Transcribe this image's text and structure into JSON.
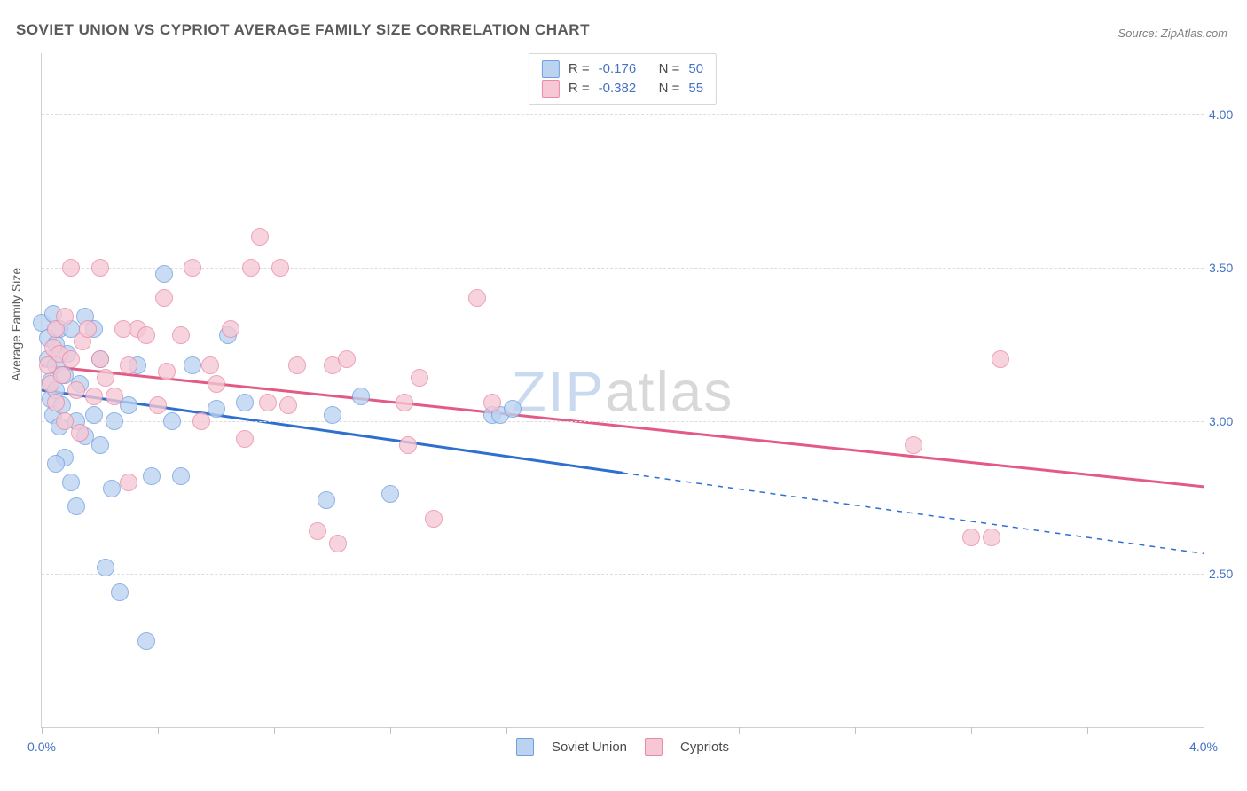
{
  "title": "SOVIET UNION VS CYPRIOT AVERAGE FAMILY SIZE CORRELATION CHART",
  "source": "Source: ZipAtlas.com",
  "ylabel": "Average Family Size",
  "watermark": {
    "zip": "ZIP",
    "rest": "atlas"
  },
  "chart": {
    "type": "scatter+regression",
    "xlim": [
      0.0,
      4.0
    ],
    "ylim": [
      2.0,
      4.2
    ],
    "xtick_positions": [
      0.0,
      0.4,
      0.8,
      1.2,
      1.6,
      2.0,
      2.4,
      2.8,
      3.2,
      3.6,
      4.0
    ],
    "xtick_labels": {
      "0.0": "0.0%",
      "4.0": "4.0%"
    },
    "ytick_positions": [
      2.5,
      3.0,
      3.5,
      4.0
    ],
    "ytick_labels": [
      "2.50",
      "3.00",
      "3.50",
      "4.00"
    ],
    "grid_color": "#dcdcdc",
    "background_color": "#ffffff",
    "axis_color": "#d0d0d0",
    "marker_radius": 9,
    "marker_stroke_width": 1.5,
    "label_fontsize": 14,
    "title_fontsize": 17
  },
  "series": [
    {
      "name": "Soviet Union",
      "fill": "#bcd3f0",
      "stroke": "#6f9fe0",
      "line_color": "#2f6fd0",
      "R": "-0.176",
      "N": "50",
      "regression": {
        "x1": 0.0,
        "y1": 3.1,
        "x2_solid": 2.0,
        "y2_solid": 2.83,
        "x2_dash": 4.05,
        "y2_dash": 2.56
      },
      "points": [
        [
          0.0,
          3.32
        ],
        [
          0.02,
          3.27
        ],
        [
          0.02,
          3.2
        ],
        [
          0.03,
          3.13
        ],
        [
          0.03,
          3.07
        ],
        [
          0.04,
          3.02
        ],
        [
          0.04,
          3.35
        ],
        [
          0.05,
          3.1
        ],
        [
          0.05,
          3.18
        ],
        [
          0.05,
          3.25
        ],
        [
          0.06,
          2.98
        ],
        [
          0.06,
          3.3
        ],
        [
          0.07,
          3.05
        ],
        [
          0.08,
          2.88
        ],
        [
          0.08,
          3.15
        ],
        [
          0.09,
          3.22
        ],
        [
          0.1,
          2.8
        ],
        [
          0.1,
          3.3
        ],
        [
          0.12,
          2.72
        ],
        [
          0.12,
          3.0
        ],
        [
          0.13,
          3.12
        ],
        [
          0.15,
          2.95
        ],
        [
          0.15,
          3.34
        ],
        [
          0.18,
          3.02
        ],
        [
          0.18,
          3.3
        ],
        [
          0.2,
          2.92
        ],
        [
          0.2,
          3.2
        ],
        [
          0.22,
          2.52
        ],
        [
          0.24,
          2.78
        ],
        [
          0.25,
          3.0
        ],
        [
          0.27,
          2.44
        ],
        [
          0.3,
          3.05
        ],
        [
          0.33,
          3.18
        ],
        [
          0.36,
          2.28
        ],
        [
          0.38,
          2.82
        ],
        [
          0.42,
          3.48
        ],
        [
          0.45,
          3.0
        ],
        [
          0.48,
          2.82
        ],
        [
          0.52,
          3.18
        ],
        [
          0.6,
          3.04
        ],
        [
          0.64,
          3.28
        ],
        [
          0.7,
          3.06
        ],
        [
          0.98,
          2.74
        ],
        [
          1.0,
          3.02
        ],
        [
          1.1,
          3.08
        ],
        [
          1.2,
          2.76
        ],
        [
          1.55,
          3.02
        ],
        [
          1.58,
          3.02
        ],
        [
          1.62,
          3.04
        ],
        [
          0.05,
          2.86
        ]
      ]
    },
    {
      "name": "Cypriots",
      "fill": "#f6c7d4",
      "stroke": "#e88aa6",
      "line_color": "#e35a84",
      "R": "-0.382",
      "N": "55",
      "regression": {
        "x1": 0.0,
        "y1": 3.18,
        "x2_solid": 4.05,
        "y2_solid": 2.78,
        "x2_dash": 4.05,
        "y2_dash": 2.78
      },
      "points": [
        [
          0.02,
          3.18
        ],
        [
          0.03,
          3.12
        ],
        [
          0.04,
          3.24
        ],
        [
          0.05,
          3.3
        ],
        [
          0.05,
          3.06
        ],
        [
          0.06,
          3.22
        ],
        [
          0.07,
          3.15
        ],
        [
          0.08,
          3.34
        ],
        [
          0.08,
          3.0
        ],
        [
          0.1,
          3.2
        ],
        [
          0.1,
          3.5
        ],
        [
          0.12,
          3.1
        ],
        [
          0.13,
          2.96
        ],
        [
          0.14,
          3.26
        ],
        [
          0.16,
          3.3
        ],
        [
          0.18,
          3.08
        ],
        [
          0.2,
          3.2
        ],
        [
          0.2,
          3.5
        ],
        [
          0.22,
          3.14
        ],
        [
          0.25,
          3.08
        ],
        [
          0.28,
          3.3
        ],
        [
          0.3,
          3.18
        ],
        [
          0.3,
          2.8
        ],
        [
          0.33,
          3.3
        ],
        [
          0.36,
          3.28
        ],
        [
          0.4,
          3.05
        ],
        [
          0.43,
          3.16
        ],
        [
          0.48,
          3.28
        ],
        [
          0.52,
          3.5
        ],
        [
          0.55,
          3.0
        ],
        [
          0.58,
          3.18
        ],
        [
          0.6,
          3.12
        ],
        [
          0.65,
          3.3
        ],
        [
          0.7,
          2.94
        ],
        [
          0.72,
          3.5
        ],
        [
          0.75,
          3.6
        ],
        [
          0.78,
          3.06
        ],
        [
          0.82,
          3.5
        ],
        [
          0.85,
          3.05
        ],
        [
          0.88,
          3.18
        ],
        [
          0.95,
          2.64
        ],
        [
          1.0,
          3.18
        ],
        [
          1.02,
          2.6
        ],
        [
          1.05,
          3.2
        ],
        [
          1.25,
          3.06
        ],
        [
          1.26,
          2.92
        ],
        [
          1.3,
          3.14
        ],
        [
          1.35,
          2.68
        ],
        [
          1.5,
          3.4
        ],
        [
          1.55,
          3.06
        ],
        [
          3.0,
          2.92
        ],
        [
          3.2,
          2.62
        ],
        [
          3.27,
          2.62
        ],
        [
          3.3,
          3.2
        ],
        [
          0.42,
          3.4
        ]
      ]
    }
  ],
  "stats_legend_labels": {
    "R": "R =",
    "N": "N ="
  },
  "bottom_legend": [
    "Soviet Union",
    "Cypriots"
  ]
}
